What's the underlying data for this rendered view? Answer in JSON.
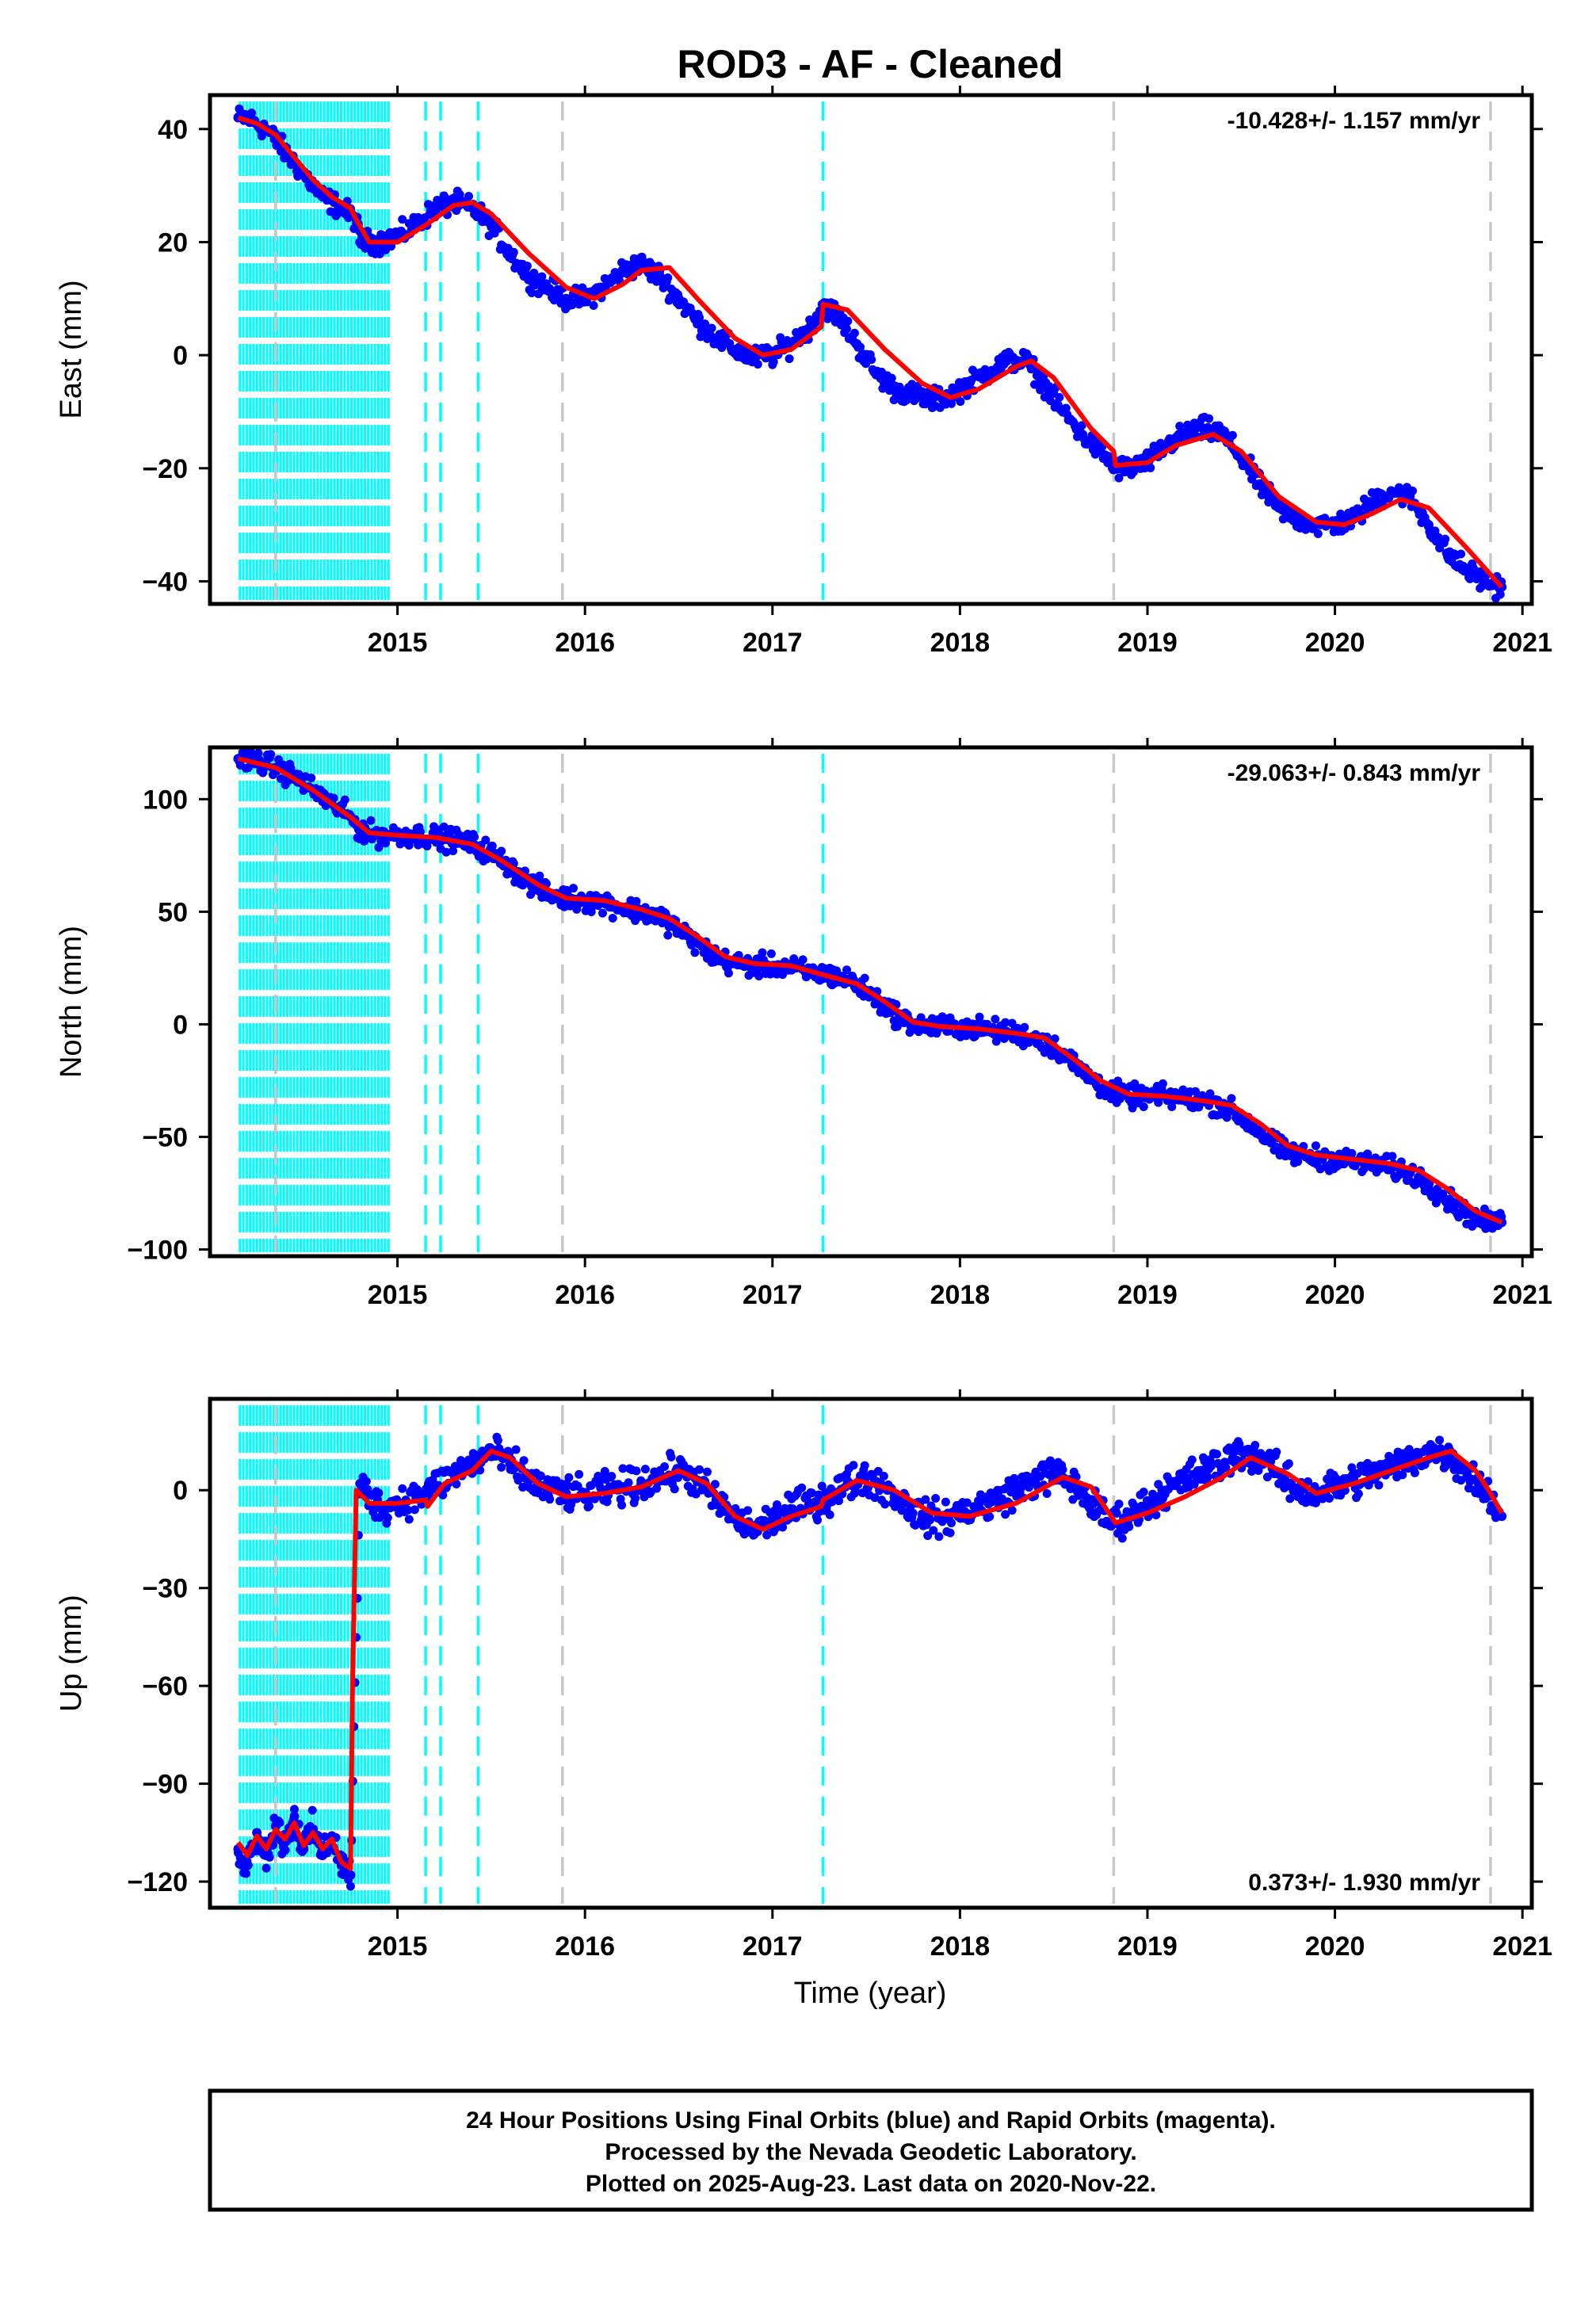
{
  "title": "ROD3  - AF - Cleaned",
  "xlabel": "Time (year)",
  "footer": {
    "line1": "24 Hour Positions Using Final Orbits (blue) and Rapid Orbits (magenta).",
    "line2": "Processed by the Nevada Geodetic Laboratory.",
    "line3": "Plotted on 2025-Aug-23. Last data on 2020-Nov-22."
  },
  "colors": {
    "data": "#0000ff",
    "model": "#ff0000",
    "equipment_change": "#00ffff",
    "other_event": "#c8c8c8"
  },
  "chart_data": [
    {
      "type": "scatter",
      "panel": "east",
      "ylabel": "East (mm)",
      "rate_text": "-10.428+/- 1.157 mm/yr",
      "xlim": [
        2014.0,
        2021.05
      ],
      "ylim": [
        -44,
        46
      ],
      "xticks": [
        "2015",
        "2016",
        "2017",
        "2018",
        "2019",
        "2020",
        "2021"
      ],
      "yticks": [
        "40",
        "20",
        "0",
        "−20",
        "−40"
      ],
      "series": [
        {
          "role": "daily positions",
          "x": [
            2014.15,
            2014.2,
            2014.3,
            2014.4,
            2014.5,
            2014.6,
            2014.7,
            2014.78,
            2014.8,
            2014.9,
            2015.0,
            2015.1,
            2015.2,
            2015.3,
            2015.4,
            2015.5,
            2015.6,
            2015.7,
            2015.8,
            2015.9,
            2016.0,
            2016.1,
            2016.2,
            2016.3,
            2016.4,
            2016.5,
            2016.6,
            2016.7,
            2016.8,
            2016.9,
            2017.0,
            2017.1,
            2017.2,
            2017.27,
            2017.35,
            2017.45,
            2017.55,
            2017.65,
            2017.75,
            2017.85,
            2017.95,
            2018.05,
            2018.15,
            2018.25,
            2018.35,
            2018.45,
            2018.55,
            2018.65,
            2018.75,
            2018.83,
            2018.9,
            2019.0,
            2019.1,
            2019.2,
            2019.3,
            2019.4,
            2019.5,
            2019.6,
            2019.7,
            2019.8,
            2019.9,
            2020.0,
            2020.1,
            2020.2,
            2020.3,
            2020.4,
            2020.5,
            2020.6,
            2020.7,
            2020.8,
            2020.89
          ],
          "y": [
            42,
            42,
            40,
            36,
            32,
            28,
            26,
            24,
            20,
            20,
            21,
            23,
            26,
            27,
            26,
            23,
            18,
            14,
            12,
            10,
            10,
            12,
            15,
            16,
            14,
            10,
            6,
            3,
            1,
            -0.5,
            0,
            2,
            5,
            9,
            7,
            2,
            -3,
            -6,
            -7,
            -8,
            -7,
            -5,
            -3,
            -1,
            -1,
            -5,
            -10,
            -14,
            -17,
            -20,
            -20,
            -19,
            -16,
            -14,
            -13,
            -14,
            -18,
            -23,
            -27,
            -29,
            -30,
            -30,
            -29,
            -26,
            -24,
            -25,
            -30,
            -35,
            -38,
            -40,
            -41
          ]
        },
        {
          "role": "model fit",
          "x": [
            2014.15,
            2014.25,
            2014.35,
            2014.45,
            2014.55,
            2014.65,
            2014.75,
            2014.78,
            2014.85,
            2015.0,
            2015.15,
            2015.3,
            2015.4,
            2015.5,
            2015.7,
            2015.9,
            2016.05,
            2016.2,
            2016.3,
            2016.45,
            2016.6,
            2016.8,
            2016.95,
            2017.1,
            2017.26,
            2017.27,
            2017.4,
            2017.6,
            2017.8,
            2017.95,
            2018.1,
            2018.3,
            2018.38,
            2018.5,
            2018.7,
            2018.82,
            2018.83,
            2019.0,
            2019.15,
            2019.35,
            2019.5,
            2019.7,
            2019.9,
            2020.05,
            2020.2,
            2020.35,
            2020.5,
            2020.7,
            2020.89
          ],
          "y": [
            42,
            41,
            39,
            35,
            31,
            28,
            26,
            24,
            20,
            20,
            23,
            26.5,
            27,
            25,
            18,
            12,
            10,
            12.5,
            15,
            15.5,
            10,
            3,
            0,
            1,
            5,
            9,
            8,
            1,
            -5,
            -7.5,
            -6,
            -2,
            -1,
            -4,
            -13,
            -17,
            -19.5,
            -19,
            -16,
            -14,
            -17,
            -25,
            -29.5,
            -30,
            -28,
            -25.5,
            -27,
            -34,
            -41
          ]
        }
      ]
    },
    {
      "type": "scatter",
      "panel": "north",
      "ylabel": "North (mm)",
      "rate_text": "-29.063+/- 0.843 mm/yr",
      "xlim": [
        2014.0,
        2021.05
      ],
      "ylim": [
        -103,
        123
      ],
      "xticks": [
        "2015",
        "2016",
        "2017",
        "2018",
        "2019",
        "2020",
        "2021"
      ],
      "yticks": [
        "100",
        "50",
        "0",
        "−50",
        "−100"
      ],
      "series": [
        {
          "role": "daily positions",
          "x": [
            2014.15,
            2014.25,
            2014.35,
            2014.45,
            2014.55,
            2014.65,
            2014.75,
            2014.8,
            2014.9,
            2015.0,
            2015.1,
            2015.2,
            2015.3,
            2015.4,
            2015.5,
            2015.6,
            2015.7,
            2015.8,
            2015.9,
            2016.0,
            2016.1,
            2016.2,
            2016.3,
            2016.4,
            2016.5,
            2016.6,
            2016.7,
            2016.8,
            2016.9,
            2017.0,
            2017.1,
            2017.2,
            2017.3,
            2017.4,
            2017.5,
            2017.6,
            2017.7,
            2017.8,
            2017.9,
            2018.0,
            2018.1,
            2018.2,
            2018.3,
            2018.4,
            2018.5,
            2018.6,
            2018.7,
            2018.8,
            2018.9,
            2019.0,
            2019.1,
            2019.2,
            2019.3,
            2019.4,
            2019.5,
            2019.6,
            2019.7,
            2019.8,
            2019.9,
            2020.0,
            2020.1,
            2020.2,
            2020.3,
            2020.4,
            2020.5,
            2020.6,
            2020.7,
            2020.8,
            2020.89
          ],
          "y": [
            118,
            117,
            114,
            110,
            104,
            98,
            92,
            86,
            84,
            84,
            84,
            83,
            82,
            80,
            76,
            70,
            63,
            58,
            56,
            55,
            54,
            52,
            50,
            48,
            42,
            36,
            29,
            27,
            26,
            26,
            25,
            23,
            22,
            20,
            15,
            8,
            2,
            -1,
            -1,
            -1,
            -2,
            -3,
            -4,
            -6,
            -10,
            -17,
            -24,
            -30,
            -32,
            -32,
            -32,
            -33,
            -34,
            -36,
            -41,
            -48,
            -55,
            -58,
            -59,
            -60,
            -61,
            -62,
            -64,
            -66,
            -71,
            -78,
            -84,
            -88,
            -88
          ]
        },
        {
          "role": "model fit",
          "x": [
            2014.15,
            2014.35,
            2014.55,
            2014.75,
            2014.85,
            2015.0,
            2015.2,
            2015.4,
            2015.55,
            2015.75,
            2015.9,
            2016.1,
            2016.3,
            2016.45,
            2016.6,
            2016.75,
            2016.9,
            2017.1,
            2017.27,
            2017.45,
            2017.6,
            2017.75,
            2017.9,
            2018.1,
            2018.3,
            2018.45,
            2018.6,
            2018.75,
            2018.9,
            2019.1,
            2019.3,
            2019.45,
            2019.6,
            2019.75,
            2019.9,
            2020.1,
            2020.3,
            2020.45,
            2020.6,
            2020.75,
            2020.89
          ],
          "y": [
            118,
            114,
            104,
            92,
            85,
            84,
            83,
            80,
            73,
            62,
            56,
            55,
            51,
            47,
            39,
            30,
            27,
            26,
            22,
            18,
            10,
            1,
            -1,
            -2,
            -4,
            -6,
            -15,
            -25,
            -31,
            -32,
            -34,
            -36,
            -44,
            -54,
            -58,
            -60,
            -62,
            -65,
            -73,
            -83,
            -88
          ]
        }
      ]
    },
    {
      "type": "scatter",
      "panel": "up",
      "ylabel": "Up (mm)",
      "rate_text": "0.373+/- 1.930 mm/yr",
      "xlim": [
        2014.0,
        2021.05
      ],
      "ylim": [
        -128,
        28
      ],
      "xticks": [
        "2015",
        "2016",
        "2017",
        "2018",
        "2019",
        "2020",
        "2021"
      ],
      "yticks": [
        "0",
        "−30",
        "−60",
        "−90",
        "−120"
      ],
      "series": [
        {
          "role": "daily positions",
          "x": [
            2014.15,
            2014.2,
            2014.25,
            2014.3,
            2014.35,
            2014.4,
            2014.45,
            2014.5,
            2014.55,
            2014.6,
            2014.65,
            2014.7,
            2014.75,
            2014.8,
            2014.9,
            2015.0,
            2015.1,
            2015.2,
            2015.3,
            2015.4,
            2015.5,
            2015.6,
            2015.7,
            2015.8,
            2015.9,
            2016.0,
            2016.1,
            2016.2,
            2016.3,
            2016.4,
            2016.5,
            2016.6,
            2016.7,
            2016.8,
            2016.9,
            2017.0,
            2017.1,
            2017.2,
            2017.3,
            2017.4,
            2017.5,
            2017.6,
            2017.7,
            2017.8,
            2017.9,
            2018.0,
            2018.1,
            2018.2,
            2018.3,
            2018.4,
            2018.5,
            2018.6,
            2018.7,
            2018.8,
            2018.9,
            2019.0,
            2019.1,
            2019.2,
            2019.3,
            2019.4,
            2019.5,
            2019.6,
            2019.7,
            2019.8,
            2019.9,
            2020.0,
            2020.1,
            2020.2,
            2020.3,
            2020.4,
            2020.5,
            2020.6,
            2020.7,
            2020.8,
            2020.89
          ],
          "y": [
            -110,
            -115,
            -105,
            -112,
            -103,
            -108,
            -100,
            -110,
            -104,
            -112,
            -106,
            -115,
            -118,
            2,
            -5,
            -4,
            -2,
            1,
            5,
            8,
            12,
            8,
            3,
            0,
            -1,
            -2,
            0,
            1,
            2,
            4,
            6,
            3,
            -3,
            -9,
            -12,
            -9,
            -6,
            -4,
            -2,
            2,
            4,
            1,
            -4,
            -8,
            -9,
            -7,
            -5,
            -3,
            0,
            3,
            5,
            2,
            -4,
            -10,
            -8,
            -4,
            0,
            3,
            6,
            8,
            12,
            10,
            5,
            0,
            -1,
            1,
            3,
            5,
            7,
            9,
            12,
            11,
            6,
            0,
            -8
          ]
        },
        {
          "role": "model fit",
          "x": [
            2014.15,
            2014.2,
            2014.25,
            2014.3,
            2014.35,
            2014.4,
            2014.45,
            2014.5,
            2014.55,
            2014.6,
            2014.65,
            2014.7,
            2014.75,
            2014.76,
            2014.78,
            2014.85,
            2015.0,
            2015.15,
            2015.16,
            2015.25,
            2015.4,
            2015.5,
            2015.6,
            2015.75,
            2015.9,
            2016.1,
            2016.3,
            2016.5,
            2016.65,
            2016.8,
            2016.95,
            2017.1,
            2017.26,
            2017.27,
            2017.45,
            2017.65,
            2017.85,
            2018.05,
            2018.3,
            2018.55,
            2018.7,
            2018.83,
            2019.0,
            2019.2,
            2019.4,
            2019.55,
            2019.75,
            2019.9,
            2020.1,
            2020.3,
            2020.5,
            2020.62,
            2020.75,
            2020.82,
            2020.89
          ],
          "y": [
            -108,
            -112,
            -106,
            -110,
            -104,
            -107,
            -102,
            -109,
            -105,
            -110,
            -107,
            -114,
            -116,
            -60,
            0,
            -4,
            -4,
            -3,
            -5,
            2,
            6,
            12,
            10,
            2,
            -2,
            -1,
            1,
            6,
            2,
            -8,
            -12,
            -8,
            -5,
            -3,
            3,
            0,
            -7,
            -8,
            -4,
            4,
            1,
            -10,
            -7,
            -2,
            4,
            10,
            5,
            -1,
            2,
            6,
            10,
            12,
            6,
            0,
            -7
          ]
        }
      ]
    }
  ]
}
